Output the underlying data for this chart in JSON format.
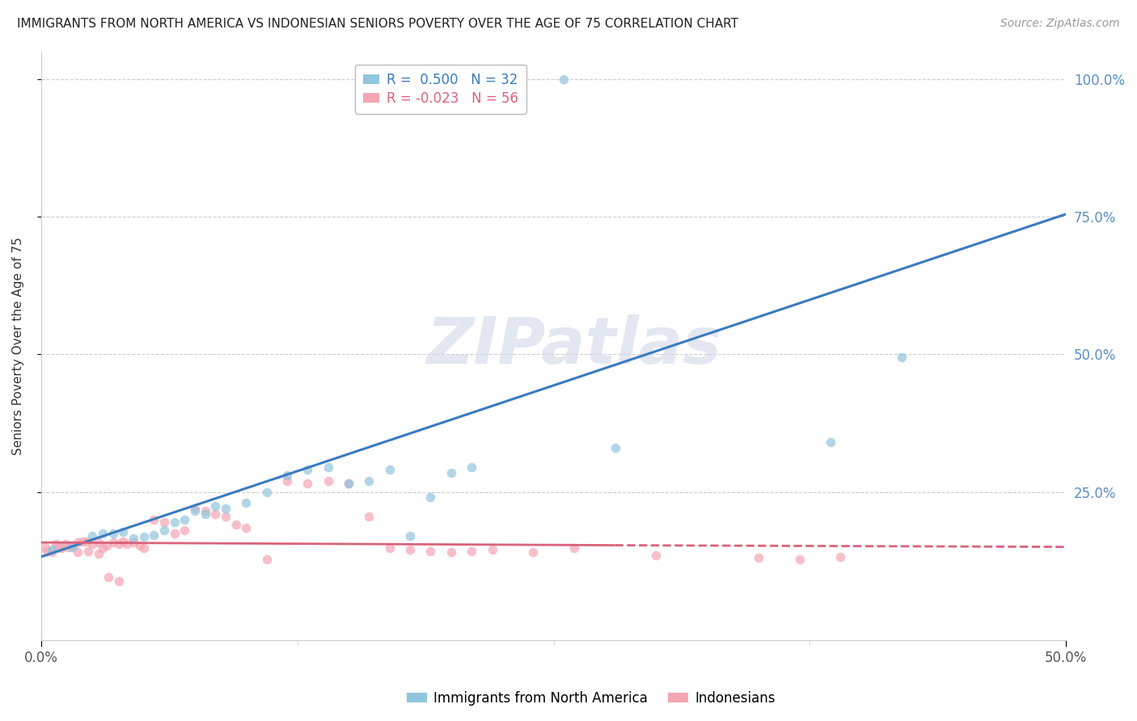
{
  "title": "IMMIGRANTS FROM NORTH AMERICA VS INDONESIAN SENIORS POVERTY OVER THE AGE OF 75 CORRELATION CHART",
  "source": "Source: ZipAtlas.com",
  "ylabel": "Seniors Poverty Over the Age of 75",
  "xlim": [
    0.0,
    0.5
  ],
  "ylim": [
    -0.02,
    1.05
  ],
  "blue_R": 0.5,
  "blue_N": 32,
  "pink_R": -0.023,
  "pink_N": 56,
  "blue_color": "#92c5de",
  "pink_color": "#f4a5b2",
  "blue_line_color": "#3a7bbf",
  "pink_line_color": "#d9637a",
  "watermark_text": "ZIPatlas",
  "legend_label_blue": "Immigrants from North America",
  "legend_label_pink": "Indonesians",
  "blue_scatter_x": [
    0.255,
    0.005,
    0.015,
    0.025,
    0.03,
    0.035,
    0.04,
    0.045,
    0.05,
    0.055,
    0.06,
    0.065,
    0.07,
    0.075,
    0.08,
    0.085,
    0.09,
    0.1,
    0.11,
    0.12,
    0.13,
    0.14,
    0.15,
    0.16,
    0.17,
    0.18,
    0.19,
    0.2,
    0.21,
    0.28,
    0.385,
    0.42
  ],
  "blue_scatter_y": [
    1.0,
    0.145,
    0.15,
    0.17,
    0.175,
    0.175,
    0.178,
    0.165,
    0.168,
    0.172,
    0.18,
    0.195,
    0.2,
    0.215,
    0.21,
    0.225,
    0.22,
    0.23,
    0.25,
    0.28,
    0.29,
    0.295,
    0.265,
    0.27,
    0.29,
    0.17,
    0.24,
    0.285,
    0.295,
    0.33,
    0.34,
    0.495
  ],
  "pink_scatter_x": [
    0.002,
    0.005,
    0.007,
    0.01,
    0.012,
    0.015,
    0.018,
    0.02,
    0.022,
    0.025,
    0.028,
    0.03,
    0.032,
    0.035,
    0.038,
    0.04,
    0.042,
    0.045,
    0.048,
    0.05,
    0.055,
    0.06,
    0.065,
    0.07,
    0.075,
    0.08,
    0.085,
    0.09,
    0.095,
    0.1,
    0.11,
    0.12,
    0.13,
    0.14,
    0.15,
    0.16,
    0.17,
    0.18,
    0.19,
    0.2,
    0.21,
    0.22,
    0.24,
    0.26,
    0.3,
    0.35,
    0.37,
    0.39,
    0.003,
    0.008,
    0.013,
    0.018,
    0.023,
    0.028,
    0.033,
    0.038
  ],
  "pink_scatter_y": [
    0.15,
    0.14,
    0.155,
    0.148,
    0.155,
    0.152,
    0.158,
    0.16,
    0.16,
    0.155,
    0.158,
    0.148,
    0.152,
    0.158,
    0.155,
    0.16,
    0.155,
    0.158,
    0.152,
    0.148,
    0.2,
    0.195,
    0.175,
    0.18,
    0.22,
    0.215,
    0.21,
    0.205,
    0.19,
    0.185,
    0.128,
    0.27,
    0.265,
    0.27,
    0.265,
    0.205,
    0.148,
    0.145,
    0.142,
    0.14,
    0.142,
    0.145,
    0.14,
    0.148,
    0.135,
    0.13,
    0.128,
    0.132,
    0.142,
    0.148,
    0.15,
    0.14,
    0.142,
    0.138,
    0.095,
    0.088
  ],
  "blue_line_x0": 0.0,
  "blue_line_y0": 0.132,
  "blue_line_x1": 0.5,
  "blue_line_y1": 0.755,
  "pink_line_solid_x0": 0.0,
  "pink_line_solid_y0": 0.158,
  "pink_line_solid_x1": 0.28,
  "pink_line_solid_y1": 0.153,
  "pink_line_dash_x0": 0.28,
  "pink_line_dash_y0": 0.153,
  "pink_line_dash_x1": 0.5,
  "pink_line_dash_y1": 0.15,
  "ytick_positions": [
    0.25,
    0.5,
    0.75,
    1.0
  ],
  "ytick_labels": [
    "25.0%",
    "50.0%",
    "75.0%",
    "100.0%"
  ],
  "xtick_positions": [
    0.0,
    0.5
  ],
  "xtick_labels": [
    "0.0%",
    "50.0%"
  ],
  "tick_color_y": "#5b8ec4",
  "tick_color_x": "#555555",
  "title_fontsize": 11,
  "source_fontsize": 10,
  "ylabel_fontsize": 11,
  "tick_fontsize": 12,
  "legend_fontsize": 12,
  "marker_size": 70,
  "background_color": "#ffffff",
  "grid_color": "#cccccc",
  "spine_color": "#cccccc"
}
